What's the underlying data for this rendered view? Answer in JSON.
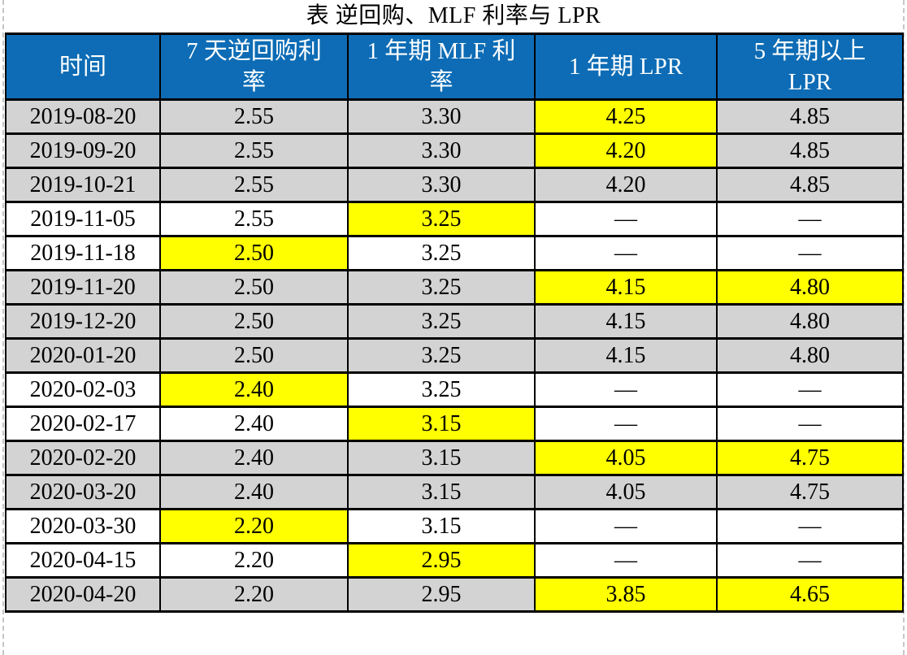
{
  "title": "表 逆回购、MLF 利率与 LPR",
  "colors": {
    "header_bg": "#0D6CB5",
    "header_text": "#FFFFFF",
    "row_shade": "#D3D3D3",
    "highlight": "#FFFF00",
    "border": "#000000",
    "page_boundary": "#C6C6C6"
  },
  "table": {
    "columns": [
      {
        "label": "时间",
        "lines": [
          "时间"
        ]
      },
      {
        "label": "7 天逆回购利率",
        "lines": [
          "7 天逆回购利",
          "率"
        ]
      },
      {
        "label": "1 年期 MLF 利率",
        "lines": [
          "1 年期 MLF 利",
          "率"
        ]
      },
      {
        "label": "1 年期 LPR",
        "lines": [
          "1 年期 LPR"
        ]
      },
      {
        "label": "5 年期以上 LPR",
        "lines": [
          "5 年期以上",
          "LPR"
        ]
      }
    ],
    "rows": [
      {
        "date": "2019-08-20",
        "shaded": true,
        "values": [
          "2.55",
          "3.30",
          "4.25",
          "4.85"
        ],
        "highlight": [
          false,
          false,
          true,
          false
        ]
      },
      {
        "date": "2019-09-20",
        "shaded": true,
        "values": [
          "2.55",
          "3.30",
          "4.20",
          "4.85"
        ],
        "highlight": [
          false,
          false,
          true,
          false
        ]
      },
      {
        "date": "2019-10-21",
        "shaded": true,
        "values": [
          "2.55",
          "3.30",
          "4.20",
          "4.85"
        ],
        "highlight": [
          false,
          false,
          false,
          false
        ]
      },
      {
        "date": "2019-11-05",
        "shaded": false,
        "values": [
          "2.55",
          "3.25",
          "—",
          "—"
        ],
        "highlight": [
          false,
          true,
          false,
          false
        ]
      },
      {
        "date": "2019-11-18",
        "shaded": false,
        "values": [
          "2.50",
          "3.25",
          "—",
          "—"
        ],
        "highlight": [
          true,
          false,
          false,
          false
        ]
      },
      {
        "date": "2019-11-20",
        "shaded": true,
        "values": [
          "2.50",
          "3.25",
          "4.15",
          "4.80"
        ],
        "highlight": [
          false,
          false,
          true,
          true
        ]
      },
      {
        "date": "2019-12-20",
        "shaded": true,
        "values": [
          "2.50",
          "3.25",
          "4.15",
          "4.80"
        ],
        "highlight": [
          false,
          false,
          false,
          false
        ]
      },
      {
        "date": "2020-01-20",
        "shaded": true,
        "values": [
          "2.50",
          "3.25",
          "4.15",
          "4.80"
        ],
        "highlight": [
          false,
          false,
          false,
          false
        ]
      },
      {
        "date": "2020-02-03",
        "shaded": false,
        "values": [
          "2.40",
          "3.25",
          "—",
          "—"
        ],
        "highlight": [
          true,
          false,
          false,
          false
        ]
      },
      {
        "date": "2020-02-17",
        "shaded": false,
        "values": [
          "2.40",
          "3.15",
          "—",
          "—"
        ],
        "highlight": [
          false,
          true,
          false,
          false
        ]
      },
      {
        "date": "2020-02-20",
        "shaded": true,
        "values": [
          "2.40",
          "3.15",
          "4.05",
          "4.75"
        ],
        "highlight": [
          false,
          false,
          true,
          true
        ]
      },
      {
        "date": "2020-03-20",
        "shaded": true,
        "values": [
          "2.40",
          "3.15",
          "4.05",
          "4.75"
        ],
        "highlight": [
          false,
          false,
          false,
          false
        ]
      },
      {
        "date": "2020-03-30",
        "shaded": false,
        "values": [
          "2.20",
          "3.15",
          "—",
          "—"
        ],
        "highlight": [
          true,
          false,
          false,
          false
        ]
      },
      {
        "date": "2020-04-15",
        "shaded": false,
        "values": [
          "2.20",
          "2.95",
          "—",
          "—"
        ],
        "highlight": [
          false,
          true,
          false,
          false
        ]
      },
      {
        "date": "2020-04-20",
        "shaded": true,
        "values": [
          "2.20",
          "2.95",
          "3.85",
          "4.65"
        ],
        "highlight": [
          false,
          false,
          true,
          true
        ]
      }
    ]
  }
}
